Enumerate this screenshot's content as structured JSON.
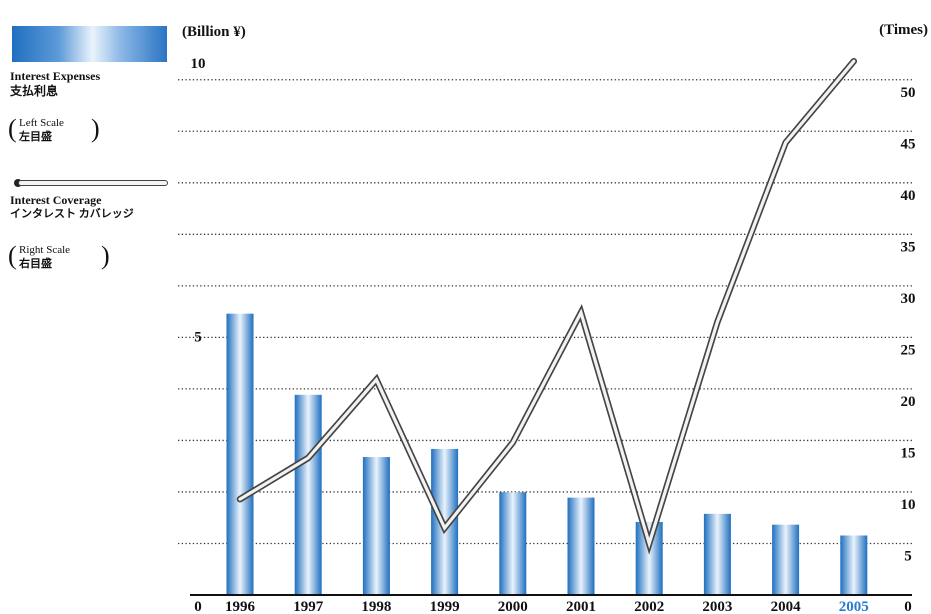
{
  "legend": {
    "bar_name_en": "Interest Expenses",
    "bar_name_jp": "支払利息",
    "bar_scale_en": "Left Scale",
    "bar_scale_jp": "左目盛",
    "line_name_en": "Interest Coverage",
    "line_name_jp": "インタレスト カバレッジ",
    "line_scale_en": "Right Scale",
    "line_scale_jp": "右目盛"
  },
  "colors": {
    "bar_dark": "#1f6fc0",
    "bar_light": "#eaf3fb",
    "highlight_year": "#2a7ad0",
    "line_outer": "#444444",
    "line_inner": "#f2f2f2"
  },
  "chart_data": {
    "type": "bar+line",
    "categories": [
      "1996",
      "1997",
      "1998",
      "1999",
      "2000",
      "2001",
      "2002",
      "2003",
      "2004",
      "2005"
    ],
    "highlight_category": "2005",
    "left_axis": {
      "label": "(Billion ¥)",
      "range": [
        0,
        10
      ],
      "ticks": [
        {
          "v": 0,
          "t": "0"
        },
        {
          "v": 5,
          "t": "5"
        },
        {
          "v": 10,
          "t": "10"
        }
      ]
    },
    "right_axis": {
      "label": "(Times)",
      "range": [
        0,
        52.5
      ],
      "ticks": [
        {
          "v": 0,
          "t": "0"
        },
        {
          "v": 5,
          "t": "5"
        },
        {
          "v": 10,
          "t": "10"
        },
        {
          "v": 15,
          "t": "15"
        },
        {
          "v": 20,
          "t": "20"
        },
        {
          "v": 25,
          "t": "25"
        },
        {
          "v": 30,
          "t": "30"
        },
        {
          "v": 35,
          "t": "35"
        },
        {
          "v": 40,
          "t": "40"
        },
        {
          "v": 45,
          "t": "45"
        },
        {
          "v": 50,
          "t": "50"
        }
      ]
    },
    "gridlines": [
      5,
      10,
      15,
      20,
      25,
      30,
      35,
      40,
      45,
      50
    ],
    "series": [
      {
        "name": "Interest Expenses",
        "axis": "left",
        "kind": "bar",
        "values": [
          5.2,
          3.7,
          2.55,
          2.7,
          1.9,
          1.8,
          1.35,
          1.5,
          1.3,
          1.1
        ]
      },
      {
        "name": "Interest Coverage",
        "axis": "right",
        "kind": "line",
        "values": [
          9.3,
          13.3,
          20.9,
          6.5,
          14.8,
          27.4,
          5.0,
          26.5,
          43.9,
          51.8
        ]
      }
    ]
  }
}
